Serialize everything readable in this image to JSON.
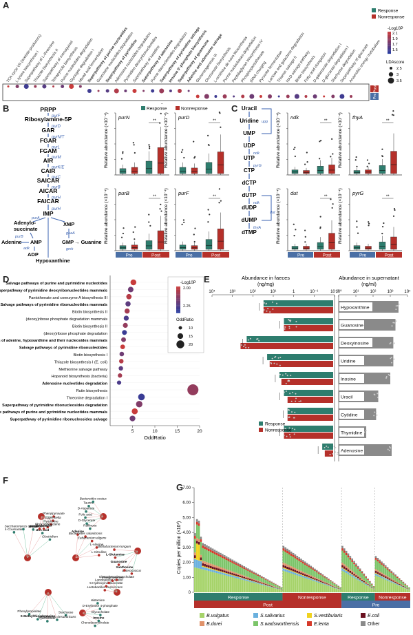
{
  "panels": {
    "A": "A",
    "B": "B",
    "C": "C",
    "D": "D",
    "E": "E",
    "F": "F",
    "G": "G"
  },
  "colors": {
    "response": "#2e7d6e",
    "nonresponse": "#b5302a",
    "pre": "#4a6fa5",
    "post": "#b5302a",
    "pathway_arrow": "#3a62b0"
  },
  "legend": {
    "response": "Response",
    "nonresponse": "Nonresponse",
    "pre": "Pre",
    "post": "Post",
    "neglog10p": "-Log10P",
    "oddratio": "OddRatio",
    "ldascore": "LDAscore"
  },
  "panelA": {
    "terms": [
      "TCA cycle VII (acetate-producers)",
      "L-lysine biosynthesis I",
      "Superpathway of L-threonine",
      "Thiazole biosynthesis II",
      "Superpathway of menaquinol",
      "Tetrapyrrole biosynthesis",
      "Purine nucleotides degradation",
      "Glycogen degradation I",
      "Mixed acid fermentation",
      "Superpathway of purine nucleotides",
      "Guanosine nucleotides degradation",
      "Superpathway of pyrimidine",
      "Adenosine nucleotides degradation",
      "Pyrimidine deoxyribonucleotides",
      "Superpathway of histidine",
      "Superpathway of adenosine",
      "Purine ribonucleosides degradation",
      "Superpathway of pyrimidine salvage",
      "Inosine 5'-phosphate biosynthesis",
      "Superpathway of guanosine",
      "Adenine and adenosine salvage",
      "Gluconeogenesis III",
      "Chorismate biosynthesis",
      "L-ornithine de novo biosynthesis",
      "Purine nucleobases degradation",
      "Peptidoglycan biosynthesis IV",
      "Phosphopantothenate",
      "tRNA charging",
      "Pyruvate fermentation",
      "Lactose and galactose degradation",
      "Thiamin salvage II",
      "NAD salvage pathway",
      "Biotin biosynthesis",
      "Fatty acid elongation",
      "D-galactarate degradation I",
      "D-glucarate degradation I",
      "Stachyose degradation",
      "Superpathway of glucarate",
      "Anaerobic energy metabolism"
    ],
    "groups": [
      "Post",
      "Pre"
    ],
    "legend_values": {
      "neglog10p": [
        2.1,
        1.9,
        1.7,
        1.5
      ],
      "ldascore": [
        2.5,
        3.0,
        3.5
      ]
    }
  },
  "panelB": {
    "steps": [
      "PRPP",
      "Ribosylamine-5P",
      "GAR",
      "FGAR",
      "FGAM",
      "AIR",
      "CAIR",
      "SAICAR",
      "AICAR",
      "FAICAR",
      "IMP"
    ],
    "enzymes": [
      "purF",
      "purD",
      "purN/T",
      "purL",
      "purM",
      "purK/E",
      "purC",
      "purB",
      "purH",
      "purH"
    ],
    "branch": {
      "left1": "Adenylo-succinate",
      "left2": "AMP",
      "left3": "ADP",
      "right1": "XMP",
      "right2": "GMP",
      "right3": "Guanine",
      "bottom": "Hypoxanthine",
      "adenine": "Adenine",
      "enz_a": "purA",
      "enz_b": "purB",
      "enz_c": "adk",
      "enz_d": "guaA",
      "enz_e": "gmk"
    },
    "genes": [
      "purN",
      "purD",
      "purB",
      "purF"
    ],
    "ylabel": "Relative abundance (×10⁻⁴)",
    "sig": "**"
  },
  "panelC": {
    "steps": [
      "Uracil",
      "Uridine",
      "UMP",
      "UDP",
      "UTP",
      "CTP",
      "dCTP",
      "dUTP",
      "dUDP",
      "dUMP",
      "dTMP"
    ],
    "enzymes": {
      "upp": "upp",
      "ndk": "ndk",
      "pyrG": "pyrG",
      "dut": "dut",
      "thyA": "thyA",
      "ndk2": "ndk"
    },
    "genes": [
      "ndk",
      "thyA",
      "dut",
      "pyrG"
    ],
    "ylabel": "Relative abundance (×10⁻⁴)",
    "sig": "**"
  },
  "panelD": {
    "chart_data": {
      "type": "scatter",
      "xlabel": "OddRatio",
      "xlim": [
        0,
        20
      ],
      "xticks": [
        5,
        10,
        15,
        20
      ],
      "categories": [
        "Salvage pathways of purine and pyrimidine nucleotides",
        "Superpathway of pyrimidine deoxyribonucleotides mammals",
        "Pantothenate and coenzyme A biosynthesis III",
        "Salvage pathways of pyrimidine ribonucleotides mammals",
        "Biotin biosynthesis II",
        "(deoxy)ribose phosphate degradation mammals",
        "Biotin biosynthesis II",
        "(deoxy)ribose phosphate degradation",
        "Salvage pathways of adenine, hypoxanthine and their nucleosides mammals",
        "Salvage pathways of pyrimidine ribonucleotides",
        "Biotin biosynthesis I",
        "Thiazole biosynthesis I (E. coli)",
        "Methionine salvage pathway",
        "Hopanoid biosynthesis (bacteria)",
        "Adenosine nucleotides degradation",
        "Rutin biosynthesis",
        "Threonine degradation I",
        "Superpathway of pyrimidine ribonucleosides degradation",
        "Salvage pathways of purine and pyrimidine nucleotides mammals",
        "Superpathway of pyrimidine ribonucleosides salvage"
      ],
      "values": [
        5.2,
        4.6,
        4.2,
        4.0,
        3.8,
        3.6,
        3.4,
        3.2,
        3.0,
        2.8,
        2.6,
        2.5,
        2.4,
        2.2,
        2.0,
        18.5,
        7.0,
        6.5,
        5.5,
        5.0
      ],
      "legend_values": {
        "neglog10p": [
          2.0,
          2.25
        ],
        "oddratio": [
          10,
          15,
          20
        ]
      }
    }
  },
  "panelE": {
    "left_title": "Abundance in faeces",
    "left_unit": "(ng/mg)",
    "right_title": "Abundance in supernatant",
    "right_unit": "(ng/ml)",
    "left_ticks": [
      "10⁴",
      "10³",
      "10²",
      "10¹",
      "1",
      "10⁻¹",
      "10⁻²"
    ],
    "right_ticks": [
      "10⁰",
      "10¹",
      "10²",
      "10³",
      "10⁴"
    ],
    "chart_data": {
      "type": "bar",
      "categories": [
        "Hypoxanthine",
        "Guanosine",
        "Deoxyinosine",
        "Uridine",
        "Inosine",
        "Uracil",
        "Cytidine",
        "Thymidine",
        "Adenosine"
      ],
      "series": [
        {
          "name": "Response",
          "values": [
            30,
            3,
            200,
            20,
            5,
            3,
            2,
            3,
            0.04
          ]
        },
        {
          "name": "Nonresponse",
          "values": [
            30,
            3,
            400,
            15,
            4,
            2,
            2,
            3,
            0.03
          ]
        },
        {
          "name": "supernatant",
          "values": [
            3000,
            2000,
            1500,
            1500,
            1000,
            200,
            150,
            40,
            1200
          ]
        }
      ]
    }
  },
  "panelF": {
    "nodes": [
      "Phenylpyruvate",
      "Raffinose",
      "Adenine",
      "Stachyose",
      "Lactobacillus fructivorans",
      "Histamine",
      "Enterococcus",
      "4-Coumarate",
      "Eggerthella",
      "D-Glycerate",
      "Bacteroides salanitronis",
      "Desulfovibrio desulfuricans",
      "5-Hydroxyindoleacetate",
      "D-Erythrose 4-phosphate",
      "Xanthosine",
      "Saccharomyces cerevisiae",
      "Pyridoxine",
      "Folic acid",
      "Eubacterium eligens",
      "Quinolinate",
      "Lactobacillus reuteri",
      "Glycocholate",
      "Guanosine",
      "Uracil",
      "Phytosphingosine",
      "D-Aspartate",
      "L-Alanine",
      "S-Methylthioadenosine",
      "Phosphoserine",
      "Inosine",
      "L-Glutamine",
      "Uric acid",
      "Escherichia",
      "Taurine",
      "L-Citrulline",
      "Phenylpropiolate",
      "Glycochenodeoxycholate",
      "Chenodeoxycholate",
      "Bifidobacterium longum",
      "Clostridium",
      "Streptococcus",
      "Bacteroides ovatus"
    ]
  },
  "panelG": {
    "ylabel": "Copies per million (×10³)",
    "yticks": [
      "0",
      "1.00",
      "2.00",
      "3.00",
      "4.00",
      "5.00",
      "6.00",
      "7.00"
    ],
    "groups_top": [
      "Response",
      "Nonresponse",
      "Response",
      "Nonresponse"
    ],
    "groups_bottom": [
      "Post",
      "Pre"
    ],
    "species": [
      {
        "name": "B.vulgatus",
        "color": "#a6d36a"
      },
      {
        "name": "S.salivarius",
        "color": "#6ab0de"
      },
      {
        "name": "S.vestibularis",
        "color": "#f0d21f"
      },
      {
        "name": "E.coli",
        "color": "#6a1020"
      },
      {
        "name": "B.dorei",
        "color": "#e0926a"
      },
      {
        "name": "S.wadsworthensis",
        "color": "#7cc56a"
      },
      {
        "name": "E.lenta",
        "color": "#d63a2a"
      },
      {
        "name": "Other",
        "color": "#8a8a8a"
      }
    ]
  }
}
